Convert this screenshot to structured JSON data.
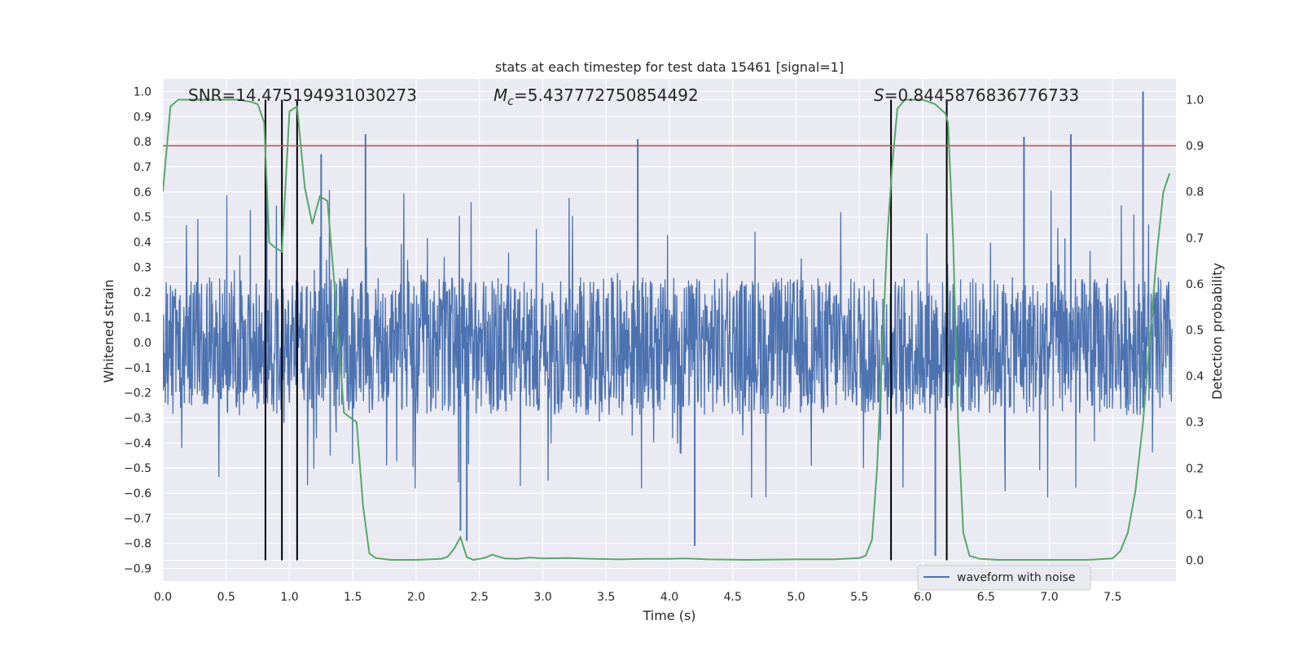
{
  "chart_data": {
    "type": "line",
    "title": "stats at each timestep for test data 15461 [signal=1]",
    "xlabel": "Time (s)",
    "ylabel": "Whitened strain",
    "y2label": "Detection probability",
    "xlim": [
      0.0,
      8.0
    ],
    "ylim": [
      -0.95,
      1.05
    ],
    "y2lim": [
      -0.045,
      1.045
    ],
    "xticks": [
      0.0,
      0.5,
      1.0,
      1.5,
      2.0,
      2.5,
      3.0,
      3.5,
      4.0,
      4.5,
      5.0,
      5.5,
      6.0,
      6.5,
      7.0,
      7.5
    ],
    "xtick_labels": [
      "0.0",
      "0.5",
      "1.0",
      "1.5",
      "2.0",
      "2.5",
      "3.0",
      "3.5",
      "4.0",
      "4.5",
      "5.0",
      "5.5",
      "6.0",
      "6.5",
      "7.0",
      "7.5"
    ],
    "yticks": [
      1.0,
      0.9,
      0.8,
      0.7,
      0.6,
      0.5,
      0.4,
      0.3,
      0.2,
      0.1,
      0.0,
      -0.1,
      -0.2,
      -0.3,
      -0.4,
      -0.5,
      -0.6,
      -0.7,
      -0.8,
      -0.9
    ],
    "ytick_labels": [
      "1.0",
      "0.9",
      "0.8",
      "0.7",
      "0.6",
      "0.5",
      "0.4",
      "0.3",
      "0.2",
      "0.1",
      "0.0",
      "−0.1",
      "−0.2",
      "−0.3",
      "−0.4",
      "−0.5",
      "−0.6",
      "−0.7",
      "−0.8",
      "−0.9"
    ],
    "y2ticks": [
      1.0,
      0.9,
      0.8,
      0.7,
      0.6,
      0.5,
      0.4,
      0.3,
      0.2,
      0.1,
      0.0
    ],
    "y2tick_labels": [
      "1.0",
      "0.9",
      "0.8",
      "0.7",
      "0.6",
      "0.5",
      "0.4",
      "0.3",
      "0.2",
      "0.1",
      "0.0"
    ],
    "grid": true,
    "legend": {
      "placement": "bottom-right",
      "entries": [
        "waveform with noise"
      ]
    },
    "annotations": {
      "snr": "SNR=14.475194931030273",
      "mc_symbol": "M",
      "mc_sub": "c",
      "mc_value": "=5.437772750854492",
      "s_symbol": "S",
      "s_value": "=0.8445876836776733"
    },
    "threshold_y2": 0.9,
    "vlines_x": [
      0.81,
      0.94,
      1.06,
      5.75,
      6.19
    ],
    "vlines_y2_range": [
      0.0,
      1.0
    ],
    "waveform": {
      "name": "waveform with noise",
      "t_start": 0.0,
      "t_end": 7.97,
      "dense_band": [
        -0.29,
        0.26
      ],
      "peak_high": 1.0,
      "peak_low": -0.85,
      "spikes": [
        {
          "t": 1.6,
          "v": 0.83
        },
        {
          "t": 3.75,
          "v": 0.81
        },
        {
          "t": 6.8,
          "v": 0.82
        },
        {
          "t": 7.17,
          "v": 0.83
        },
        {
          "t": 7.74,
          "v": 1.0
        },
        {
          "t": 6.1,
          "v": -0.85
        },
        {
          "t": 4.2,
          "v": -0.81
        },
        {
          "t": 2.35,
          "v": -0.75
        },
        {
          "t": 2.4,
          "v": -0.79
        },
        {
          "t": 1.25,
          "v": 0.75
        },
        {
          "t": 0.82,
          "v": 0.63
        }
      ]
    },
    "series": [
      {
        "name": "",
        "axis": "y2",
        "x": [
          0.0,
          0.06,
          0.12,
          0.2,
          0.3,
          0.4,
          0.5,
          0.6,
          0.7,
          0.75,
          0.8,
          0.84,
          0.88,
          0.94,
          1.0,
          1.06,
          1.12,
          1.18,
          1.24,
          1.3,
          1.36,
          1.43,
          1.48,
          1.53,
          1.58,
          1.63,
          1.68,
          1.8,
          2.0,
          2.2,
          2.25,
          2.3,
          2.35,
          2.4,
          2.45,
          2.5,
          2.55,
          2.6,
          2.65,
          2.7,
          2.8,
          2.9,
          3.0,
          3.2,
          3.4,
          3.6,
          3.8,
          4.0,
          4.13,
          4.3,
          4.6,
          5.0,
          5.3,
          5.5,
          5.55,
          5.6,
          5.64,
          5.68,
          5.72,
          5.76,
          5.8,
          5.86,
          5.92,
          6.0,
          6.1,
          6.18,
          6.2,
          6.24,
          6.28,
          6.32,
          6.37,
          6.45,
          6.6,
          7.0,
          7.3,
          7.5,
          7.56,
          7.62,
          7.68,
          7.74,
          7.8,
          7.85,
          7.9,
          7.95
        ],
        "values": [
          0.8,
          0.985,
          1.0,
          1.0,
          1.0,
          1.0,
          1.0,
          1.0,
          0.995,
          0.99,
          0.95,
          0.69,
          0.68,
          0.67,
          0.975,
          0.985,
          0.81,
          0.73,
          0.79,
          0.78,
          0.58,
          0.32,
          0.31,
          0.3,
          0.12,
          0.015,
          0.005,
          0.001,
          0.001,
          0.003,
          0.008,
          0.025,
          0.05,
          0.007,
          0.001,
          0.003,
          0.006,
          0.012,
          0.008,
          0.004,
          0.003,
          0.006,
          0.004,
          0.005,
          0.003,
          0.002,
          0.003,
          0.003,
          0.004,
          0.002,
          0.001,
          0.002,
          0.002,
          0.005,
          0.01,
          0.045,
          0.2,
          0.45,
          0.7,
          0.86,
          0.98,
          1.0,
          1.0,
          1.0,
          0.99,
          0.97,
          0.95,
          0.7,
          0.3,
          0.06,
          0.01,
          0.003,
          0.001,
          0.001,
          0.001,
          0.004,
          0.02,
          0.06,
          0.15,
          0.3,
          0.5,
          0.67,
          0.8,
          0.84
        ]
      }
    ],
    "colors": {
      "background": "#eaeaf2",
      "grid": "#ffffff",
      "waveform": "#4c72b0",
      "probability": "#55a868",
      "threshold": "#c44e52",
      "vline": "#000000",
      "text": "#262626"
    }
  }
}
